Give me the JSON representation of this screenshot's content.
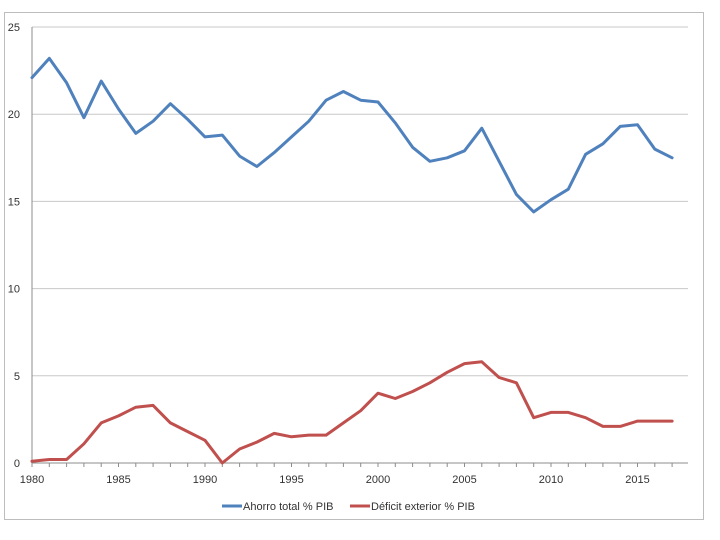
{
  "chart_data": {
    "type": "line",
    "title": "",
    "xlabel": "",
    "ylabel": "",
    "xlim": [
      1980,
      2017
    ],
    "ylim": [
      0,
      25
    ],
    "x_ticks": [
      1980,
      1985,
      1990,
      1995,
      2000,
      2005,
      2010,
      2015
    ],
    "y_ticks": [
      0,
      5,
      10,
      15,
      20,
      25
    ],
    "grid": "horizontal",
    "legend_position": "bottom",
    "x": [
      1980,
      1981,
      1982,
      1983,
      1984,
      1985,
      1986,
      1987,
      1988,
      1989,
      1990,
      1991,
      1992,
      1993,
      1994,
      1995,
      1996,
      1997,
      1998,
      1999,
      2000,
      2001,
      2002,
      2003,
      2004,
      2005,
      2006,
      2007,
      2008,
      2009,
      2010,
      2011,
      2012,
      2013,
      2014,
      2015,
      2016,
      2017
    ],
    "series": [
      {
        "name": "Ahorro total % PIB",
        "color": "#4f81bd",
        "values": [
          22.1,
          23.2,
          21.8,
          19.8,
          21.9,
          20.3,
          18.9,
          19.6,
          20.6,
          19.7,
          18.7,
          18.8,
          17.6,
          17.0,
          17.8,
          18.7,
          19.6,
          20.8,
          21.3,
          20.8,
          20.7,
          19.5,
          18.1,
          17.3,
          17.5,
          17.9,
          19.2,
          17.3,
          15.4,
          14.4,
          15.1,
          15.7,
          17.7,
          18.3,
          19.3,
          19.4,
          18.0,
          17.5
        ]
      },
      {
        "name": "Déficit exterior % PIB",
        "color": "#c0504d",
        "values": [
          0.1,
          0.2,
          0.2,
          1.1,
          2.3,
          2.7,
          3.2,
          3.3,
          2.3,
          1.8,
          1.3,
          0.0,
          0.8,
          1.2,
          1.7,
          1.5,
          1.6,
          1.6,
          2.3,
          3.0,
          4.0,
          3.7,
          4.1,
          4.6,
          5.2,
          5.7,
          5.8,
          4.9,
          4.6,
          2.6,
          2.9,
          2.9,
          2.6,
          2.1,
          2.1,
          2.4,
          2.4,
          2.4
        ]
      }
    ]
  }
}
